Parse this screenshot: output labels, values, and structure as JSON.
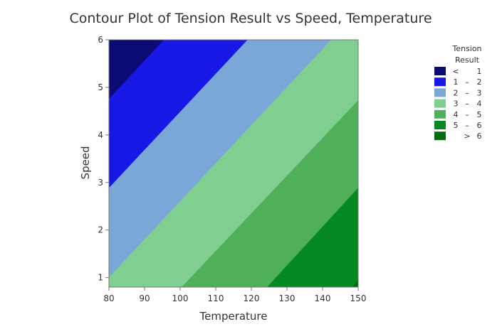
{
  "chart_data": {
    "type": "contour",
    "title": "Contour Plot of Tension Result vs Speed, Temperature",
    "xlabel": "Temperature",
    "ylabel": "Speed",
    "xlim": [
      80,
      150
    ],
    "ylim": [
      0.8,
      6
    ],
    "xticks": [
      80,
      90,
      100,
      110,
      120,
      130,
      140,
      150
    ],
    "yticks": [
      1,
      2,
      3,
      4,
      5,
      6
    ],
    "contour_lines": [
      {
        "level": 1,
        "from": [
          80,
          4.75
        ],
        "to": [
          95.5,
          6
        ]
      },
      {
        "level": 2,
        "from": [
          80,
          2.88
        ],
        "to": [
          119,
          6
        ]
      },
      {
        "level": 3,
        "from": [
          80,
          1.0
        ],
        "to": [
          142.5,
          6
        ]
      },
      {
        "level": 4,
        "from": [
          100.5,
          0.8
        ],
        "to": [
          150,
          4.72
        ]
      },
      {
        "level": 5,
        "from": [
          124.5,
          0.8
        ],
        "to": [
          150,
          2.88
        ]
      },
      {
        "level": 6,
        "from": [
          148.5,
          0.8
        ],
        "to": [
          150,
          0.95
        ]
      }
    ],
    "legend": {
      "title_lines": [
        "Tension",
        "Result"
      ],
      "position": "right",
      "items": [
        {
          "range": [
            null,
            1
          ],
          "low": "<",
          "sep": "",
          "high": "1",
          "color": "#0b0b73"
        },
        {
          "range": [
            1,
            2
          ],
          "low": "1",
          "sep": "–",
          "high": "2",
          "color": "#1818e6"
        },
        {
          "range": [
            2,
            3
          ],
          "low": "2",
          "sep": "–",
          "high": "3",
          "color": "#7aa6d8"
        },
        {
          "range": [
            3,
            4
          ],
          "low": "3",
          "sep": "–",
          "high": "4",
          "color": "#80cf90"
        },
        {
          "range": [
            4,
            5
          ],
          "low": "4",
          "sep": "–",
          "high": "5",
          "color": "#50b05a"
        },
        {
          "range": [
            5,
            6
          ],
          "low": "5",
          "sep": "–",
          "high": "6",
          "color": "#048a20"
        },
        {
          "range": [
            6,
            null
          ],
          "low": "",
          "sep": ">",
          "high": "6",
          "color": "#046a10"
        }
      ]
    }
  }
}
